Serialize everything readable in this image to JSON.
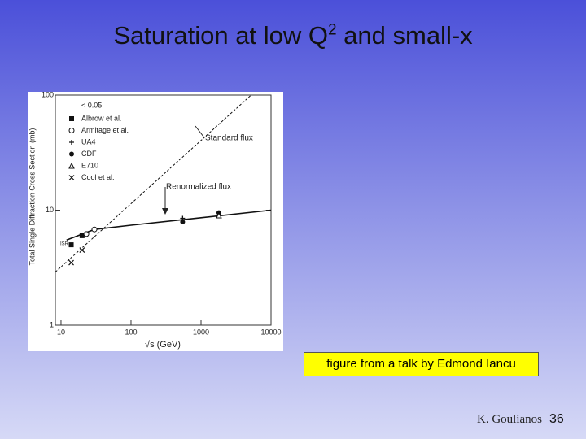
{
  "slide": {
    "title": {
      "main": "Saturation at low Q",
      "sup": "2",
      "rest": " and small-x"
    },
    "caption": "figure from a talk by Edmond Iancu",
    "footer": {
      "author": "K. Goulianos",
      "page": "36"
    }
  },
  "chart_data": {
    "type": "scatter",
    "xlabel": "√s (GeV)",
    "ylabel": "Total Single Diffraction Cross Section (mb)",
    "log_x": true,
    "log_y": true,
    "xlim": [
      8.3,
      10000
    ],
    "ylim": [
      1,
      100
    ],
    "xticks": [
      10,
      100,
      1000,
      10000
    ],
    "yticks": [
      1,
      10,
      100
    ],
    "legend_title": "< 0.05",
    "curves": [
      {
        "name": "Standard flux",
        "dash": true,
        "x": [
          8.3,
          5200
        ],
        "values": [
          2.9,
          100
        ]
      },
      {
        "name": "Renormalized flux",
        "dash": false,
        "x": [
          12,
          30,
          100,
          1000,
          10000
        ],
        "values": [
          5.5,
          6.8,
          7.4,
          8.6,
          10
        ]
      }
    ],
    "annotations": [
      "ISR"
    ],
    "series": [
      {
        "name": "Albrow et al.",
        "marker": "square",
        "x": [
          14,
          20
        ],
        "values": [
          5.0,
          6.0
        ]
      },
      {
        "name": "Armitage et al.",
        "marker": "circle-open",
        "x": [
          23,
          30
        ],
        "values": [
          6.2,
          6.8
        ]
      },
      {
        "name": "UA4",
        "marker": "plus",
        "x": [
          546
        ],
        "values": [
          8.5
        ]
      },
      {
        "name": "CDF",
        "marker": "circle",
        "x": [
          546,
          1800
        ],
        "values": [
          7.9,
          9.5
        ]
      },
      {
        "name": "E710",
        "marker": "triangle",
        "x": [
          1800
        ],
        "values": [
          9.0
        ]
      },
      {
        "name": "Cool et al.",
        "marker": "cross",
        "x": [
          14,
          20
        ],
        "values": [
          3.5,
          4.5
        ]
      }
    ]
  }
}
